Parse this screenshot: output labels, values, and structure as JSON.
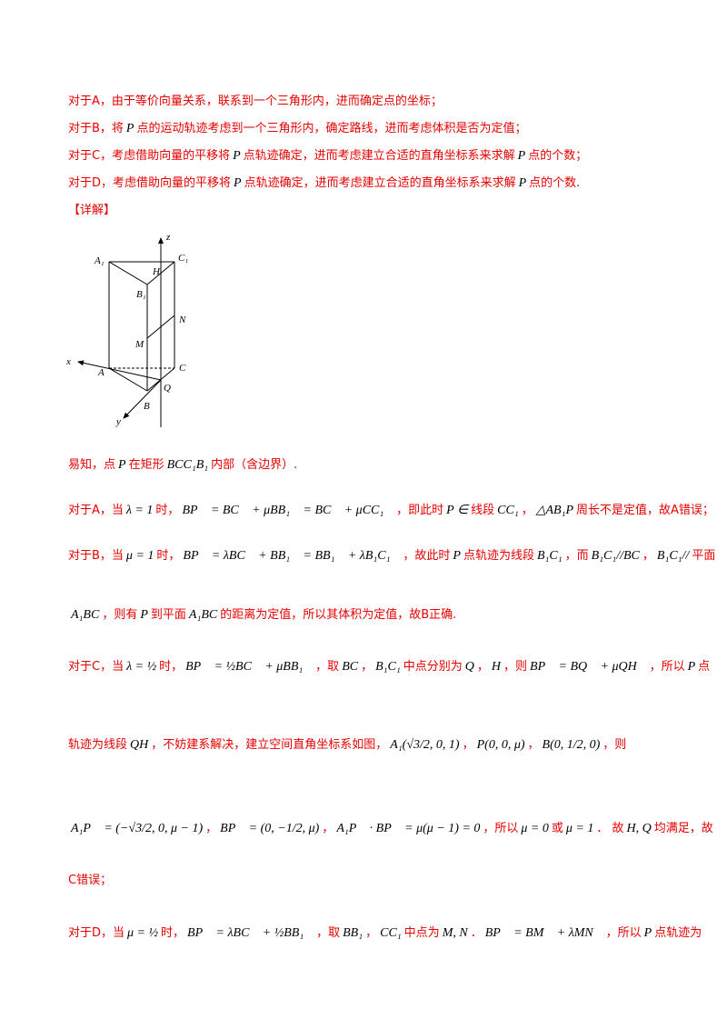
{
  "lines": [
    [
      {
        "text": "对于A，由于等价向量关系，联系到一个三角形内，进而确定点的坐标；"
      }
    ],
    [
      {
        "text": "对于B，将"
      },
      {
        "math": "P"
      },
      {
        "text": "点的运动轨迹考虑到一个三角形内，确定路线，进而考虑体积是否为定值；"
      }
    ],
    [
      {
        "text": "对于C，考虑借助向量的平移将"
      },
      {
        "math": "P"
      },
      {
        "text": "点轨迹确定，进而考虑建立合适的直角坐标系来求解"
      },
      {
        "math": "P"
      },
      {
        "text": "点的个数；"
      }
    ],
    [
      {
        "text": "对于D，考虑借助向量的平移将"
      },
      {
        "math": "P"
      },
      {
        "text": "点轨迹确定，进而考虑建立合适的直角坐标系来求解"
      },
      {
        "math": "P"
      },
      {
        "text": "点的个数."
      }
    ],
    [
      {
        "text": "【详解】"
      }
    ],
    [
      {
        "text": "易知，点"
      },
      {
        "math": "P"
      },
      {
        "text": "在矩形"
      },
      {
        "math": "BCC₁B₁"
      },
      {
        "text": "内部（含边界）."
      }
    ],
    [
      {
        "text": "对于A，当"
      },
      {
        "math": "λ = 1"
      },
      {
        "text": "时，"
      },
      {
        "math": "BP⃗ = BC⃗ + μBB₁⃗ = BC⃗ + μCC₁⃗"
      },
      {
        "text": "，即此时"
      },
      {
        "math": "P ∈"
      },
      {
        "text": "线段"
      },
      {
        "math": "CC₁"
      },
      {
        "text": "，"
      },
      {
        "math": "△AB₁P"
      },
      {
        "text": "周长不是定值，故A错误；"
      }
    ],
    [
      {
        "text": "对于B，当"
      },
      {
        "math": "μ = 1"
      },
      {
        "text": "时，"
      },
      {
        "math": "BP⃗ = λBC⃗ + BB₁⃗ = BB₁⃗ + λB₁C₁⃗"
      },
      {
        "text": "，故此时"
      },
      {
        "math": "P"
      },
      {
        "text": "点轨迹为线段"
      },
      {
        "math": "B₁C₁"
      },
      {
        "text": "，而"
      },
      {
        "math": "B₁C₁//BC"
      },
      {
        "text": "，"
      },
      {
        "math": "B₁C₁//"
      },
      {
        "text": "平面"
      }
    ],
    [
      {
        "math": "A₁BC"
      },
      {
        "text": "，则有"
      },
      {
        "math": "P"
      },
      {
        "text": "到平面"
      },
      {
        "math": "A₁BC"
      },
      {
        "text": "的距离为定值，所以其体积为定值，故B正确."
      }
    ],
    [
      {
        "text": "对于C，当"
      },
      {
        "math": "λ = ½"
      },
      {
        "text": "时，"
      },
      {
        "math": "BP⃗ = ½BC⃗ + μBB₁⃗"
      },
      {
        "text": "，取"
      },
      {
        "math": "BC"
      },
      {
        "text": "，"
      },
      {
        "math": "B₁C₁"
      },
      {
        "text": "中点分别为"
      },
      {
        "math": "Q"
      },
      {
        "text": "，"
      },
      {
        "math": "H"
      },
      {
        "text": "，则"
      },
      {
        "math": "BP⃗ = BQ⃗ + μQH⃗"
      },
      {
        "text": "，所以"
      },
      {
        "math": "P"
      },
      {
        "text": "点"
      }
    ],
    [
      {
        "text": "轨迹为线段"
      },
      {
        "math": "QH"
      },
      {
        "text": "，不妨建系解决，建立空间直角坐标系如图，"
      },
      {
        "math": "A₁(√3/2, 0, 1)"
      },
      {
        "text": "，"
      },
      {
        "math": "P(0, 0, μ)"
      },
      {
        "text": "，"
      },
      {
        "math": "B(0, 1/2, 0)"
      },
      {
        "text": "，则"
      }
    ],
    [
      {
        "math": "A₁P⃗ = (−√3/2, 0, μ − 1)"
      },
      {
        "text": "，"
      },
      {
        "math": "BP⃗ = (0, −1/2, μ)"
      },
      {
        "text": "，"
      },
      {
        "math": "A₁P⃗ · BP⃗ = μ(μ − 1) = 0"
      },
      {
        "text": "，所以"
      },
      {
        "math": "μ = 0"
      },
      {
        "text": "或"
      },
      {
        "math": "μ = 1"
      },
      {
        "text": "． 故"
      },
      {
        "math": "H, Q"
      },
      {
        "text": "均满足，故"
      }
    ],
    [
      {
        "text": "C错误；"
      }
    ],
    [
      {
        "text": "对于D，当"
      },
      {
        "math": "μ = ½"
      },
      {
        "text": "时，"
      },
      {
        "math": "BP⃗ = λBC⃗ + ½BB₁⃗"
      },
      {
        "text": "，取"
      },
      {
        "math": "BB₁"
      },
      {
        "text": "，"
      },
      {
        "math": "CC₁"
      },
      {
        "text": "中点为"
      },
      {
        "math": "M, N"
      },
      {
        "text": "．"
      },
      {
        "math": "BP⃗ = BM⃗ + λMN⃗"
      },
      {
        "text": "，所以"
      },
      {
        "math": "P"
      },
      {
        "text": "点轨迹为"
      }
    ]
  ],
  "figure": {
    "labels": [
      "A₁",
      "C₁",
      "H",
      "B₁",
      "N",
      "M",
      "x",
      "A",
      "C",
      "Q",
      "B",
      "y",
      "z"
    ]
  }
}
